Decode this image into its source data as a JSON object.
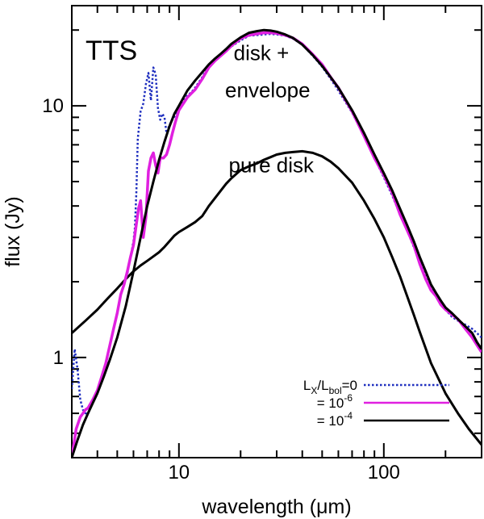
{
  "chart_data": {
    "type": "line",
    "xscale": "log",
    "yscale": "log",
    "xlim": [
      3,
      300
    ],
    "ylim": [
      0.4,
      25
    ],
    "xlabel": "wavelength (μm)",
    "ylabel": "flux (Jy)",
    "panel_label": "TTS",
    "annotations": [
      {
        "text": "disk +",
        "x": 18.5,
        "y": 15.2
      },
      {
        "text": "envelope",
        "x": 16.8,
        "y": 10.8
      },
      {
        "text": "pure disk",
        "x": 17.5,
        "y": 5.45
      }
    ],
    "xticks": [
      {
        "value": 10,
        "label": "10"
      },
      {
        "value": 100,
        "label": "100"
      }
    ],
    "yticks": [
      {
        "value": 1,
        "label": "1"
      },
      {
        "value": 10,
        "label": "10"
      }
    ],
    "legend": {
      "title_parts": {
        "L": "L",
        "X": "X",
        "slash": "/L",
        "bol": "bol",
        "eq": "=0"
      },
      "entries": [
        {
          "series": "Lx0",
          "prefix": "L",
          "sub1": "X",
          "mid": "/L",
          "sub2": "bol",
          "suffix": "=0"
        },
        {
          "series": "Lx6",
          "prefix": "= 10",
          "sup": "-6"
        },
        {
          "series": "Lx4",
          "prefix": "= 10",
          "sup": "-4"
        }
      ]
    },
    "series": [
      {
        "name": "L_X/L_bol=0",
        "key": "Lx0",
        "color": "#1f2fbf",
        "style": "dotted",
        "x": [
          3.0,
          3.1,
          3.2,
          3.3,
          3.4,
          3.5,
          3.6,
          3.8,
          4.0,
          4.2,
          4.4,
          4.6,
          4.8,
          5.0,
          5.2,
          5.4,
          5.6,
          5.8,
          6.0,
          6.1,
          6.2,
          6.3,
          6.5,
          6.7,
          6.9,
          7.1,
          7.3,
          7.5,
          7.7,
          7.9,
          8.1,
          8.3,
          8.5,
          8.7,
          9.0,
          9.3,
          9.6,
          10.0,
          10.5,
          11.0,
          11.5,
          12.0,
          13.0,
          14.0,
          15.0,
          16.0,
          17.0,
          18.0,
          20.0,
          22.0,
          24.0,
          26.0,
          28.0,
          30.0,
          33.0,
          36.0,
          40.0,
          45.0,
          50.0,
          55.0,
          60.0,
          70.0,
          80.0,
          90.0,
          100.0,
          110.0,
          120.0,
          130.0,
          140.0,
          150.0,
          160.0,
          170.0,
          180.0,
          190.0,
          200.0,
          215.0,
          230.0,
          250.0,
          270.0,
          285.0,
          300.0
        ],
        "y": [
          0.75,
          1.08,
          0.9,
          0.68,
          0.62,
          0.6,
          0.6,
          0.66,
          0.72,
          0.82,
          0.92,
          1.12,
          1.3,
          1.5,
          1.78,
          1.95,
          2.15,
          2.5,
          2.9,
          3.3,
          4.6,
          7.4,
          9.5,
          10.2,
          12.2,
          13.5,
          10.5,
          14.2,
          13.3,
          9.8,
          8.8,
          9.3,
          9.0,
          7.8,
          8.4,
          8.8,
          9.2,
          9.9,
          10.4,
          11.0,
          11.3,
          11.8,
          13.0,
          14.5,
          15.2,
          15.8,
          16.5,
          17.2,
          18.2,
          19.0,
          19.1,
          19.2,
          19.3,
          19.2,
          19.0,
          18.5,
          17.5,
          15.8,
          14.3,
          12.8,
          11.5,
          9.4,
          7.6,
          6.2,
          5.2,
          4.4,
          3.7,
          3.2,
          2.75,
          2.4,
          2.1,
          1.9,
          1.75,
          1.62,
          1.55,
          1.45,
          1.4,
          1.35,
          1.3,
          1.25,
          1.2
        ]
      },
      {
        "name": "= 10^-6",
        "key": "Lx6",
        "color": "#e020e0",
        "style": "solid",
        "x": [
          3.0,
          3.15,
          3.3,
          3.4,
          3.5,
          3.6,
          3.8,
          4.0,
          4.2,
          4.4,
          4.6,
          4.8,
          5.0,
          5.2,
          5.4,
          5.6,
          5.8,
          6.0,
          6.2,
          6.35,
          6.5,
          6.7,
          6.9,
          7.1,
          7.3,
          7.5,
          7.7,
          7.9,
          8.1,
          8.4,
          8.7,
          9.0,
          9.3,
          9.6,
          10.0,
          10.5,
          11.0,
          11.5,
          12.0,
          13.0,
          14.0,
          15.0,
          16.0,
          17.0,
          18.0,
          20.0,
          22.0,
          24.0,
          26.0,
          28.0,
          30.0,
          33.0,
          36.0,
          40.0,
          45.0,
          50.0,
          55.0,
          60.0,
          70.0,
          80.0,
          90.0,
          100.0,
          110.0,
          120.0,
          130.0,
          140.0,
          150.0,
          160.0,
          170.0,
          180.0,
          190.0,
          200.0,
          215.0,
          230.0,
          250.0,
          270.0,
          285.0,
          300.0
        ],
        "y": [
          0.4,
          0.52,
          0.58,
          0.6,
          0.62,
          0.63,
          0.68,
          0.74,
          0.84,
          0.95,
          1.12,
          1.3,
          1.5,
          1.78,
          1.95,
          2.2,
          2.5,
          2.8,
          3.4,
          3.9,
          4.2,
          3.0,
          3.6,
          5.5,
          6.2,
          6.5,
          5.8,
          5.4,
          6.2,
          6.2,
          6.4,
          7.0,
          7.8,
          8.6,
          9.6,
          10.2,
          10.8,
          11.2,
          11.6,
          12.8,
          14.2,
          15.1,
          15.8,
          16.5,
          17.3,
          18.5,
          19.1,
          19.3,
          19.5,
          19.5,
          19.4,
          19.1,
          18.6,
          17.6,
          16.0,
          14.6,
          13.0,
          11.8,
          9.5,
          7.6,
          6.2,
          5.3,
          4.5,
          3.7,
          3.2,
          2.8,
          2.35,
          2.05,
          1.85,
          1.75,
          1.62,
          1.55,
          1.48,
          1.42,
          1.3,
          1.2,
          1.12,
          1.05
        ]
      },
      {
        "name": "= 10^-4",
        "key": "Lx4",
        "color": "#000000",
        "style": "solid",
        "x": [
          3.0,
          3.2,
          3.4,
          3.6,
          3.8,
          4.0,
          4.3,
          4.6,
          5.0,
          5.5,
          6.0,
          6.5,
          7.0,
          7.5,
          8.0,
          8.5,
          9.0,
          9.5,
          10.0,
          11.0,
          12.0,
          13.0,
          14.0,
          15.0,
          16.0,
          17.0,
          18.0,
          20.0,
          22.0,
          24.0,
          26.0,
          28.0,
          30.0,
          33.0,
          36.0,
          40.0,
          45.0,
          50.0,
          55.0,
          60.0,
          70.0,
          80.0,
          90.0,
          100.0,
          110.0,
          120.0,
          130.0,
          140.0,
          150.0,
          160.0,
          170.0,
          180.0,
          190.0,
          200.0,
          215.0,
          230.0,
          250.0,
          270.0,
          285.0,
          300.0
        ],
        "y": [
          0.4,
          0.47,
          0.54,
          0.6,
          0.66,
          0.72,
          0.84,
          0.98,
          1.2,
          1.6,
          2.2,
          3.0,
          4.0,
          5.0,
          6.1,
          7.2,
          8.3,
          9.3,
          10.0,
          11.5,
          12.6,
          13.6,
          14.6,
          15.4,
          16.1,
          16.8,
          17.6,
          18.7,
          19.5,
          19.8,
          20.0,
          19.9,
          19.7,
          19.2,
          18.6,
          17.5,
          15.9,
          14.4,
          13.0,
          11.8,
          9.6,
          7.8,
          6.4,
          5.4,
          4.6,
          3.9,
          3.35,
          2.9,
          2.5,
          2.2,
          1.95,
          1.8,
          1.68,
          1.58,
          1.5,
          1.42,
          1.33,
          1.25,
          1.15,
          1.08
        ]
      },
      {
        "name": "pure disk",
        "key": "pure",
        "color": "#000000",
        "style": "solid",
        "x": [
          3.0,
          3.5,
          4.0,
          4.5,
          5.0,
          5.5,
          6.0,
          6.5,
          7.0,
          7.5,
          8.0,
          8.5,
          9.0,
          9.5,
          10.0,
          11.0,
          12.0,
          13.0,
          14.0,
          14.5,
          15.0,
          16.0,
          17.0,
          18.0,
          19.0,
          20.0,
          22.0,
          24.0,
          26.0,
          28.0,
          30.0,
          33.0,
          36.0,
          40.0,
          45.0,
          50.0,
          55.0,
          60.0,
          70.0,
          80.0,
          90.0,
          100.0,
          110.0,
          120.0,
          130.0,
          140.0,
          150.0,
          170.0,
          200.0,
          230.0,
          260.0,
          300.0
        ],
        "y": [
          1.25,
          1.4,
          1.55,
          1.72,
          1.88,
          2.05,
          2.2,
          2.32,
          2.42,
          2.52,
          2.62,
          2.75,
          2.9,
          3.05,
          3.15,
          3.3,
          3.45,
          3.65,
          4.0,
          4.15,
          4.3,
          4.6,
          4.9,
          5.15,
          5.35,
          5.55,
          5.75,
          5.9,
          6.1,
          6.25,
          6.4,
          6.5,
          6.55,
          6.6,
          6.5,
          6.3,
          6.0,
          5.65,
          4.95,
          4.2,
          3.55,
          3.0,
          2.5,
          2.1,
          1.75,
          1.48,
          1.26,
          0.95,
          0.72,
          0.6,
          0.52,
          0.45
        ]
      }
    ]
  }
}
